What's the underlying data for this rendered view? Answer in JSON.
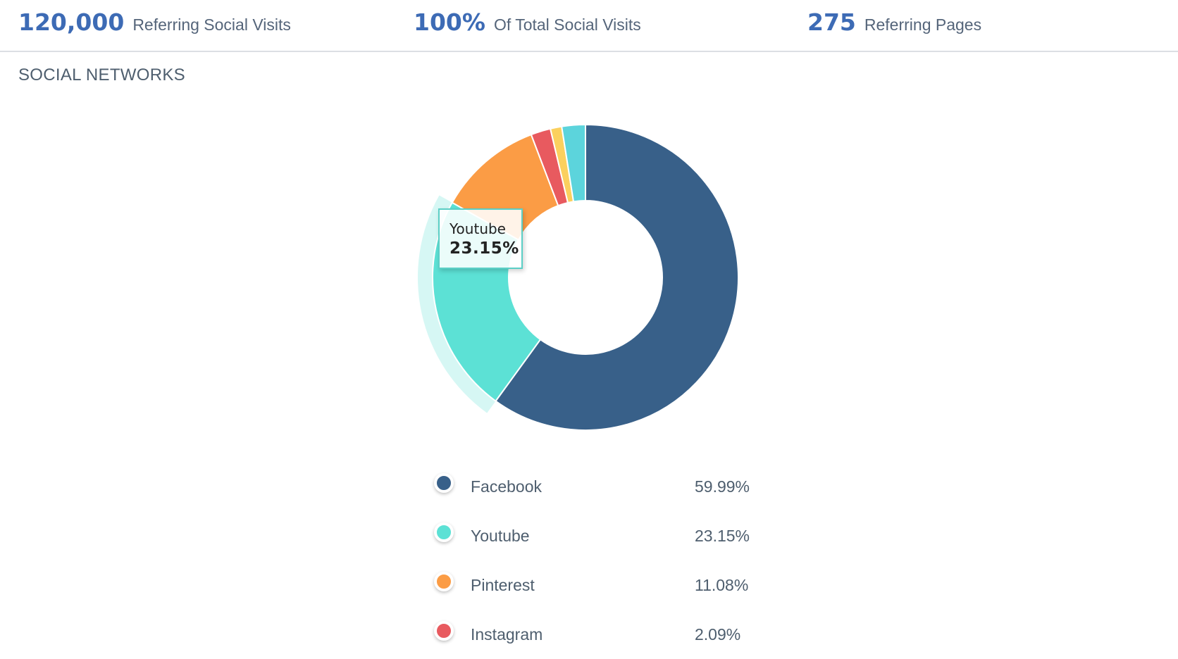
{
  "stats": [
    {
      "value": "120,000",
      "label": "Referring Social Visits"
    },
    {
      "value": "100%",
      "label": "Of Total Social Visits"
    },
    {
      "value": "275",
      "label": "Referring Pages"
    }
  ],
  "section": {
    "title": "SOCIAL NETWORKS"
  },
  "tooltip": {
    "name": "Youtube",
    "value": "23.15%"
  },
  "legend": [
    {
      "name": "Facebook",
      "value": "59.99%",
      "color": "#386089"
    },
    {
      "name": "Youtube",
      "value": "23.15%",
      "color": "#5ce1d5"
    },
    {
      "name": "Pinterest",
      "value": "11.08%",
      "color": "#fb9c45"
    },
    {
      "name": "Instagram",
      "value": "2.09%",
      "color": "#e85a5f"
    }
  ],
  "chart_data": {
    "type": "pie",
    "variant": "donut",
    "title": "SOCIAL NETWORKS",
    "highlighted": "Youtube",
    "slices": [
      {
        "name": "Facebook",
        "value": 59.99,
        "color": "#386089"
      },
      {
        "name": "Youtube",
        "value": 23.15,
        "color": "#5ce1d5"
      },
      {
        "name": "Pinterest",
        "value": 11.08,
        "color": "#fb9c45"
      },
      {
        "name": "Instagram",
        "value": 2.09,
        "color": "#e85a5f"
      },
      {
        "name": "",
        "value": 1.2,
        "color": "#fbd05e"
      },
      {
        "name": "",
        "value": 2.49,
        "color": "#5cd4dc"
      }
    ]
  }
}
